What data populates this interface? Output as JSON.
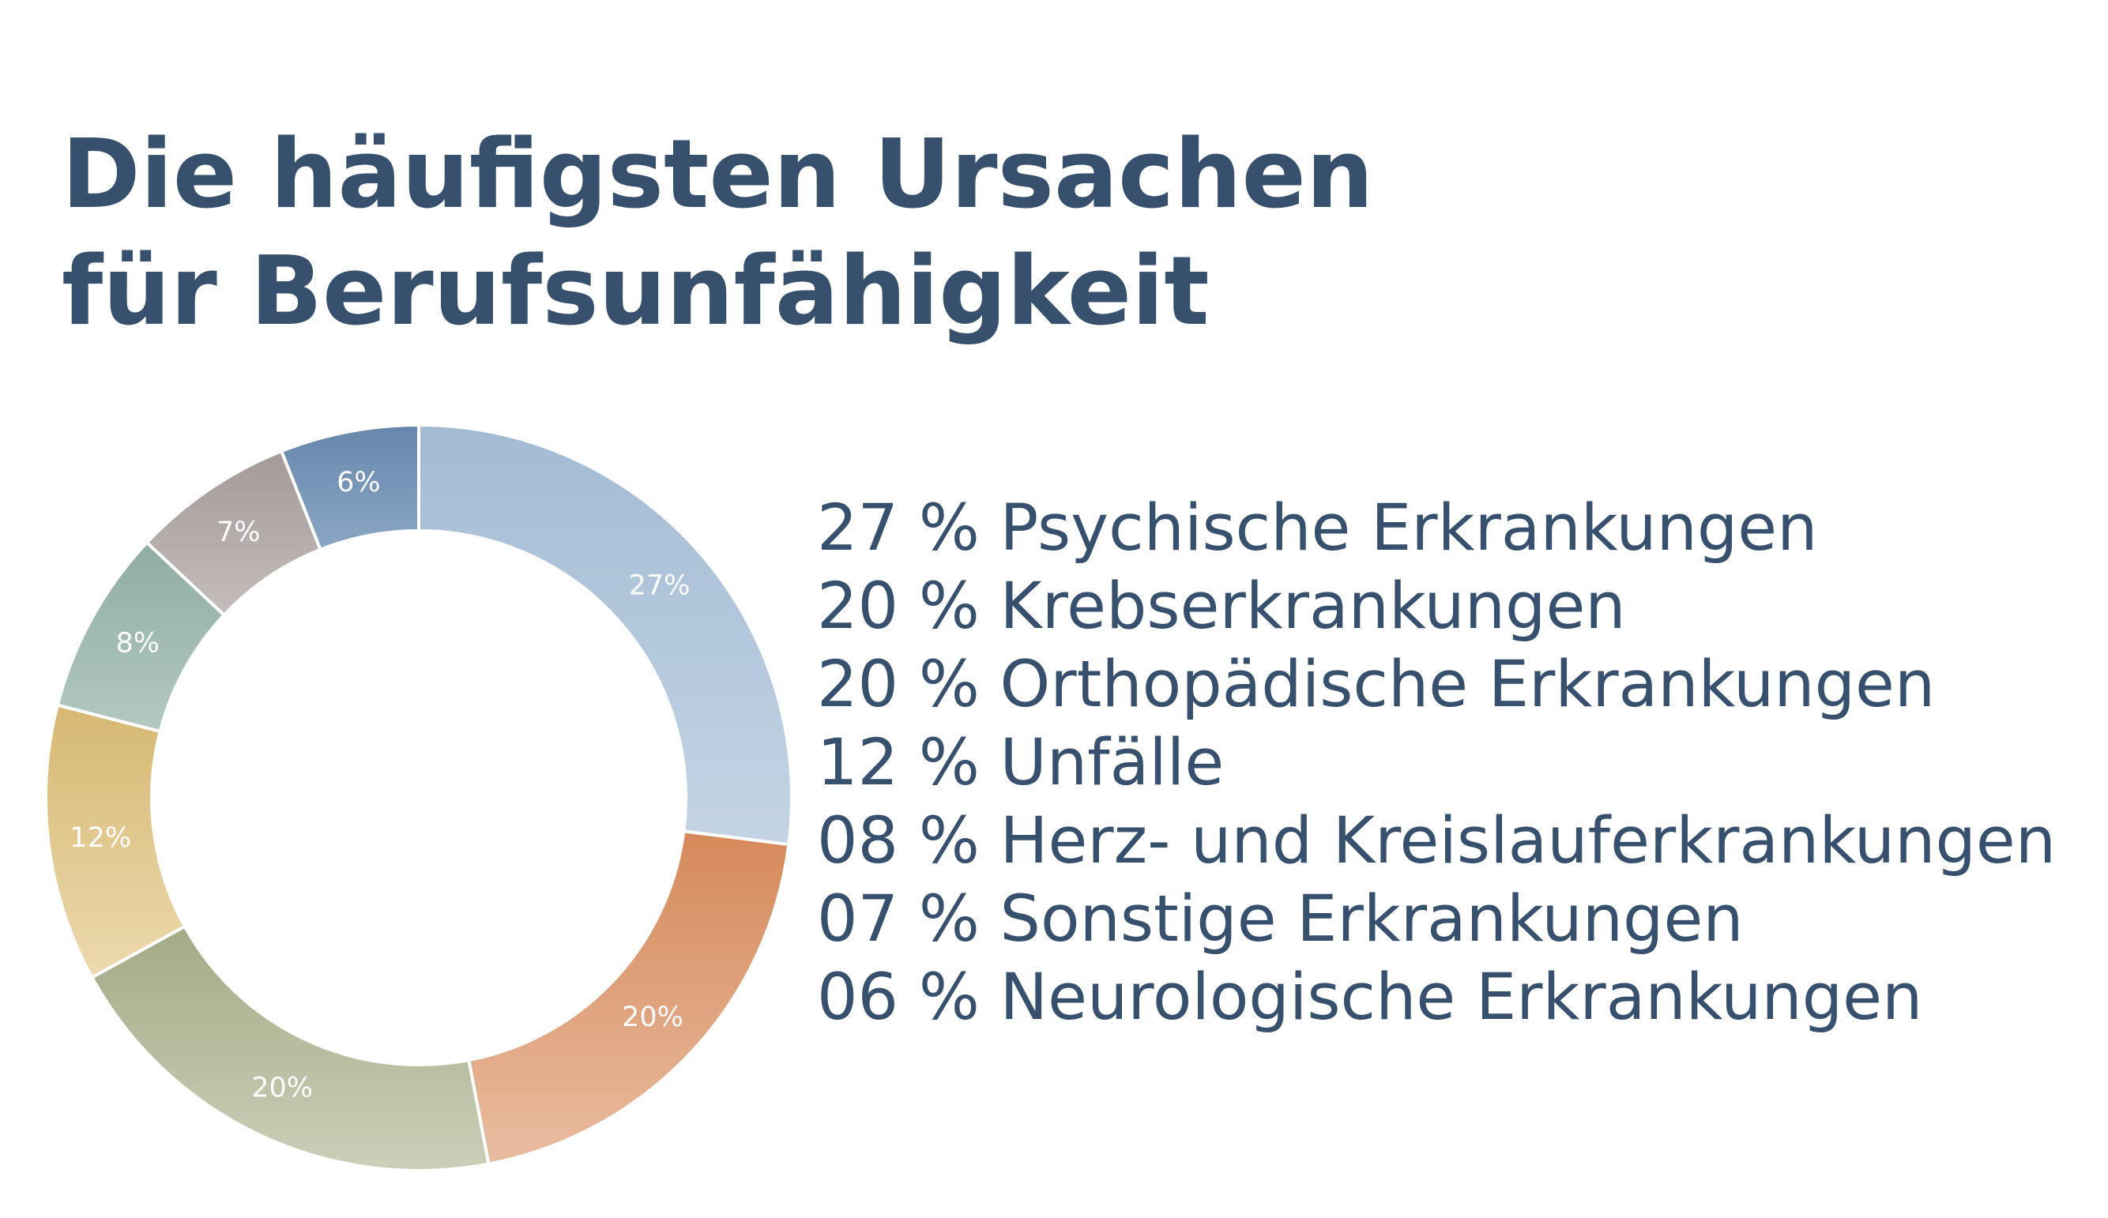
{
  "title_lines": [
    "Die häufigsten Ursachen",
    "für Berufsunfähigkeit"
  ],
  "chart_data": {
    "type": "pie",
    "donut": true,
    "title": "Die häufigsten Ursachen für Berufsunfähigkeit",
    "start_angle_deg": 0,
    "direction": "clockwise",
    "slices": [
      {
        "name": "Psychische Erkrankungen",
        "value": 27,
        "label": "27%",
        "legend": "27 % Psychische Erkrankungen",
        "color_top": "#a2bbd3",
        "color_bottom": "#c4d4e4"
      },
      {
        "name": "Krebserkrankungen",
        "value": 20,
        "label": "20%",
        "legend": "20 % Krebserkrankungen",
        "color_top": "#d5895a",
        "color_bottom": "#e9bca0"
      },
      {
        "name": "Orthopädische Erkrankungen",
        "value": 20,
        "label": "20%",
        "legend": "20 % Orthopädische Erkrankungen",
        "color_top": "#a3aa86",
        "color_bottom": "#cccfb8"
      },
      {
        "name": "Unfälle",
        "value": 12,
        "label": "12%",
        "legend": "12 % Unfälle",
        "color_top": "#d6b872",
        "color_bottom": "#ecd9ad"
      },
      {
        "name": "Herz- und Kreislauferkrankungen",
        "value": 8,
        "label": "8%",
        "legend": "08 % Herz- und Kreislauferkrankungen",
        "color_top": "#8fada2",
        "color_bottom": "#b2c9c0"
      },
      {
        "name": "Sonstige Erkrankungen",
        "value": 7,
        "label": "7%",
        "legend": "07 % Sonstige Erkrankungen",
        "color_top": "#a39a98",
        "color_bottom": "#c4bdbc"
      },
      {
        "name": "Neurologische Erkrankungen",
        "value": 6,
        "label": "6%",
        "legend": "06 % Neurologische Erkrankungen",
        "color_top": "#6687ab",
        "color_bottom": "#8aa6c4"
      }
    ]
  }
}
